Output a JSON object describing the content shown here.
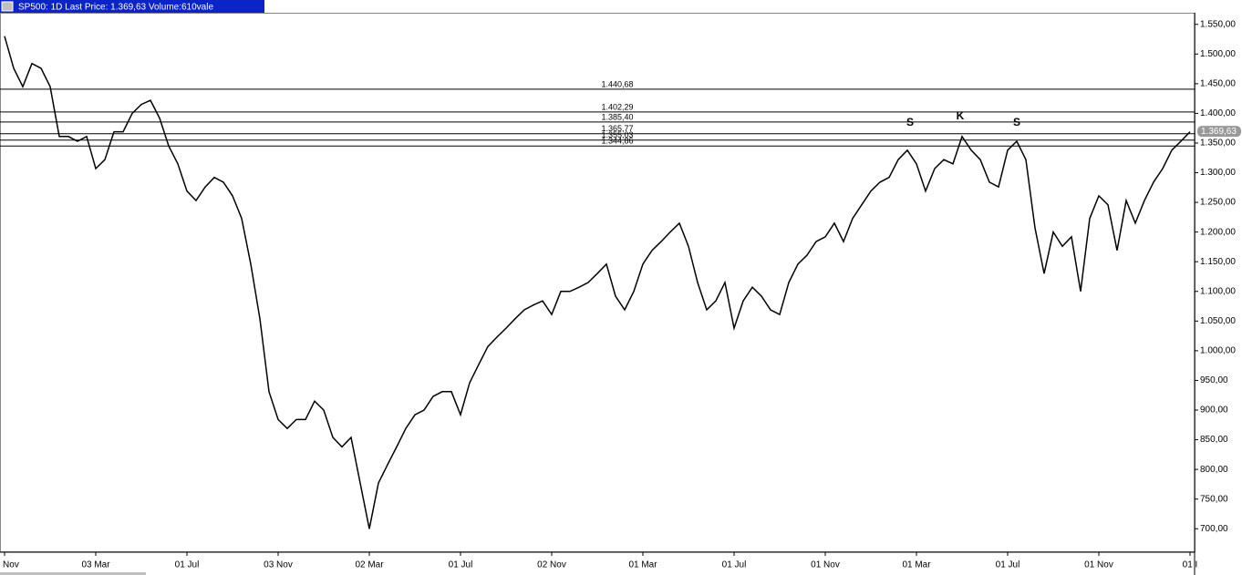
{
  "chart_data": {
    "type": "line",
    "title": "SP500: 1D Last Price: 1.369,63 Volume:610vale",
    "color": "#000000",
    "values": [
      1530,
      1476,
      1445,
      1484,
      1476,
      1445,
      1361,
      1361,
      1353,
      1361,
      1307,
      1322,
      1369,
      1369,
      1400,
      1415,
      1422,
      1392,
      1345,
      1315,
      1269,
      1253,
      1276,
      1292,
      1284,
      1261,
      1223,
      1146,
      1054,
      931,
      884,
      869,
      884,
      884,
      915,
      900,
      854,
      838,
      854,
      777,
      700,
      777,
      808,
      838,
      869,
      892,
      900,
      923,
      931,
      931,
      892,
      946,
      977,
      1007,
      1023,
      1038,
      1054,
      1069,
      1077,
      1084,
      1061,
      1100,
      1100,
      1107,
      1115,
      1130,
      1146,
      1092,
      1069,
      1100,
      1146,
      1169,
      1184,
      1200,
      1215,
      1176,
      1115,
      1069,
      1084,
      1115,
      1038,
      1084,
      1107,
      1092,
      1069,
      1061,
      1115,
      1146,
      1161,
      1184,
      1192,
      1215,
      1184,
      1223,
      1246,
      1269,
      1284,
      1292,
      1322,
      1338,
      1315,
      1269,
      1307,
      1322,
      1315,
      1361,
      1338,
      1322,
      1284,
      1276,
      1338,
      1353,
      1322,
      1207,
      1130,
      1200,
      1176,
      1192,
      1100,
      1223,
      1261,
      1246,
      1169,
      1253,
      1215,
      1253,
      1284,
      1307,
      1338,
      1353,
      1369
    ],
    "xlim": [
      -0.5,
      130.5
    ],
    "xticks": [
      {
        "value": 0,
        "label": "01 Nov"
      },
      {
        "value": 10,
        "label": "03 Mar"
      },
      {
        "value": 20,
        "label": "01 Jul"
      },
      {
        "value": 30,
        "label": "03 Nov"
      },
      {
        "value": 40,
        "label": "02 Mar"
      },
      {
        "value": 50,
        "label": "01 Jul"
      },
      {
        "value": 60,
        "label": "02 Nov"
      },
      {
        "value": 70,
        "label": "01 Mar"
      },
      {
        "value": 80,
        "label": "01 Jul"
      },
      {
        "value": 90,
        "label": "01 Nov"
      },
      {
        "value": 100,
        "label": "01 Mar"
      },
      {
        "value": 110,
        "label": "01 Jul"
      },
      {
        "value": 120,
        "label": "01 Nov"
      },
      {
        "value": 130,
        "label": "01 I"
      }
    ],
    "ylim": [
      662,
      1568
    ],
    "yticks": [
      {
        "value": 700,
        "label": "700,00"
      },
      {
        "value": 750,
        "label": "750,00"
      },
      {
        "value": 800,
        "label": "800,00"
      },
      {
        "value": 850,
        "label": "850,00"
      },
      {
        "value": 900,
        "label": "900,00"
      },
      {
        "value": 950,
        "label": "950,00"
      },
      {
        "value": 1000,
        "label": "1.000,00"
      },
      {
        "value": 1050,
        "label": "1.050,00"
      },
      {
        "value": 1100,
        "label": "1.100,00"
      },
      {
        "value": 1150,
        "label": "1.150,00"
      },
      {
        "value": 1200,
        "label": "1.200,00"
      },
      {
        "value": 1250,
        "label": "1.250,00"
      },
      {
        "value": 1300,
        "label": "1.300,00"
      },
      {
        "value": 1350,
        "label": "1.350,00"
      },
      {
        "value": 1400,
        "label": "1.400,00"
      },
      {
        "value": 1450,
        "label": "1.450,00"
      },
      {
        "value": 1500,
        "label": "1.500,00"
      },
      {
        "value": 1550,
        "label": "1.550,00"
      }
    ],
    "levels": [
      {
        "value": 1440.68,
        "label": "1.440,68"
      },
      {
        "value": 1402.29,
        "label": "1.402,29"
      },
      {
        "value": 1385.4,
        "label": "1.385,40"
      },
      {
        "value": 1365.77,
        "label": "1.365,77"
      },
      {
        "value": 1355.03,
        "label": "1.355,03"
      },
      {
        "value": 1344.86,
        "label": "1.344,86"
      }
    ],
    "last_price": {
      "value": 1369.63,
      "label": "1.369,63"
    },
    "annotations": [
      {
        "text": "S",
        "x": 99.3,
        "y": 1384
      },
      {
        "text": "K",
        "x": 104.8,
        "y": 1395
      },
      {
        "text": "S",
        "x": 111,
        "y": 1384
      }
    ]
  }
}
